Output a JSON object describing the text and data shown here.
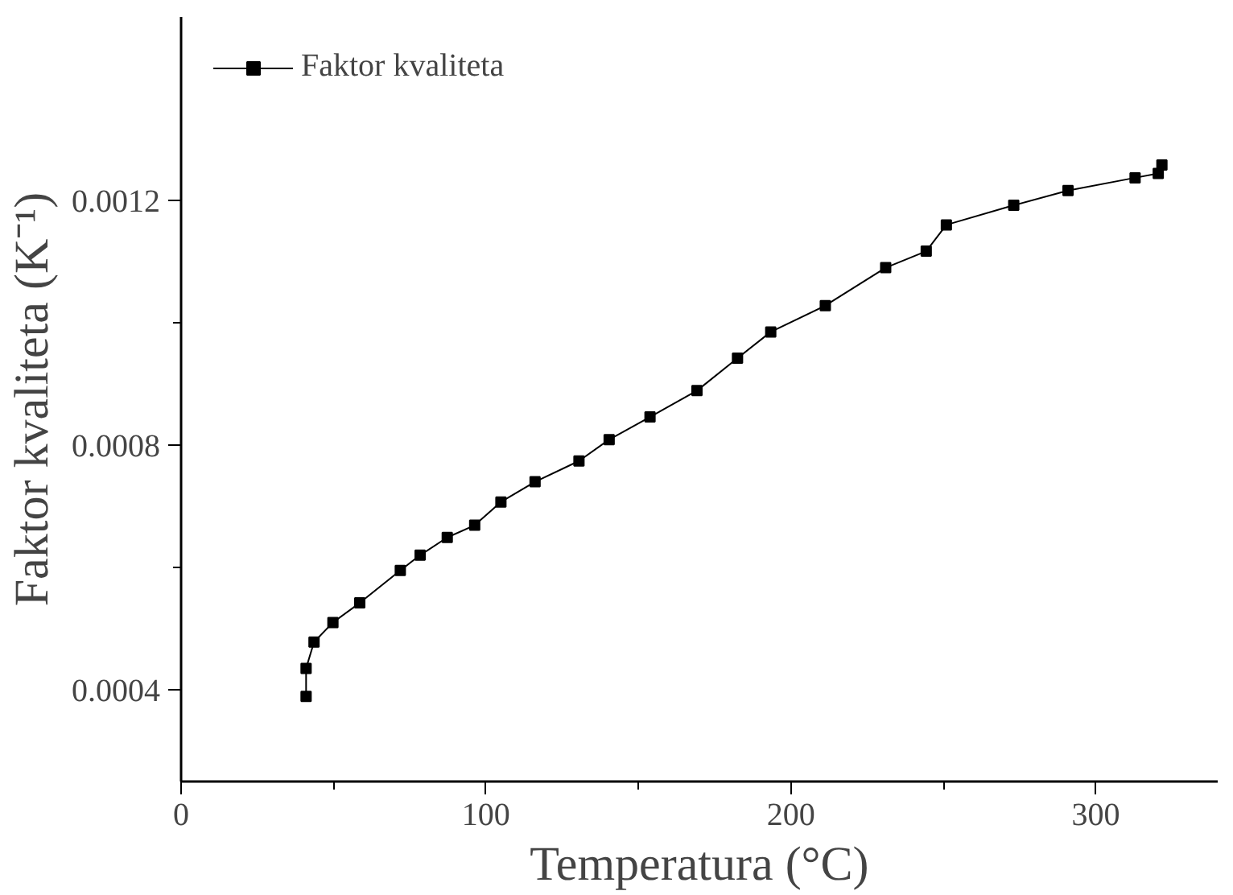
{
  "chart_data": {
    "type": "line",
    "xlabel": "Temperatura (°C)",
    "ylabel": "Faktor kvaliteta (K⁻¹)",
    "xlim": [
      0,
      340
    ],
    "ylim": [
      0.00025,
      0.0015
    ],
    "xticks": [
      0,
      {
        "value": 50,
        "label": null
      },
      100,
      {
        "value": 150,
        "label": null
      },
      200,
      {
        "value": 250,
        "label": null
      },
      300
    ],
    "yticks": [
      0.0004,
      {
        "value": 0.0006,
        "label": null
      },
      0.0008,
      {
        "value": 0.001,
        "label": null
      },
      0.0012
    ],
    "grid": false,
    "legend": "top left",
    "marker": "square",
    "line_style": "solid",
    "series": [
      {
        "name": "Faktor kvaliteta",
        "color": "#000000",
        "x": [
          41,
          41,
          43.6,
          49.8,
          58.6,
          71.9,
          78.4,
          87.3,
          96.3,
          104.9,
          116.1,
          130.5,
          140.4,
          153.8,
          169.2,
          182.5,
          193.4,
          211.3,
          231.1,
          244.4,
          251,
          273.1,
          290.9,
          312.9,
          320.5,
          321.7
        ],
        "values": [
          0.000389,
          0.000435,
          0.000478,
          0.00051,
          0.000542,
          0.000595,
          0.00062,
          0.000649,
          0.000669,
          0.000707,
          0.00074,
          0.000774,
          0.000809,
          0.000846,
          0.000889,
          0.000942,
          0.000985,
          0.001028,
          0.00109,
          0.001117,
          0.00116,
          0.001192,
          0.001216,
          0.001237,
          0.001244,
          0.001258
        ]
      }
    ]
  }
}
